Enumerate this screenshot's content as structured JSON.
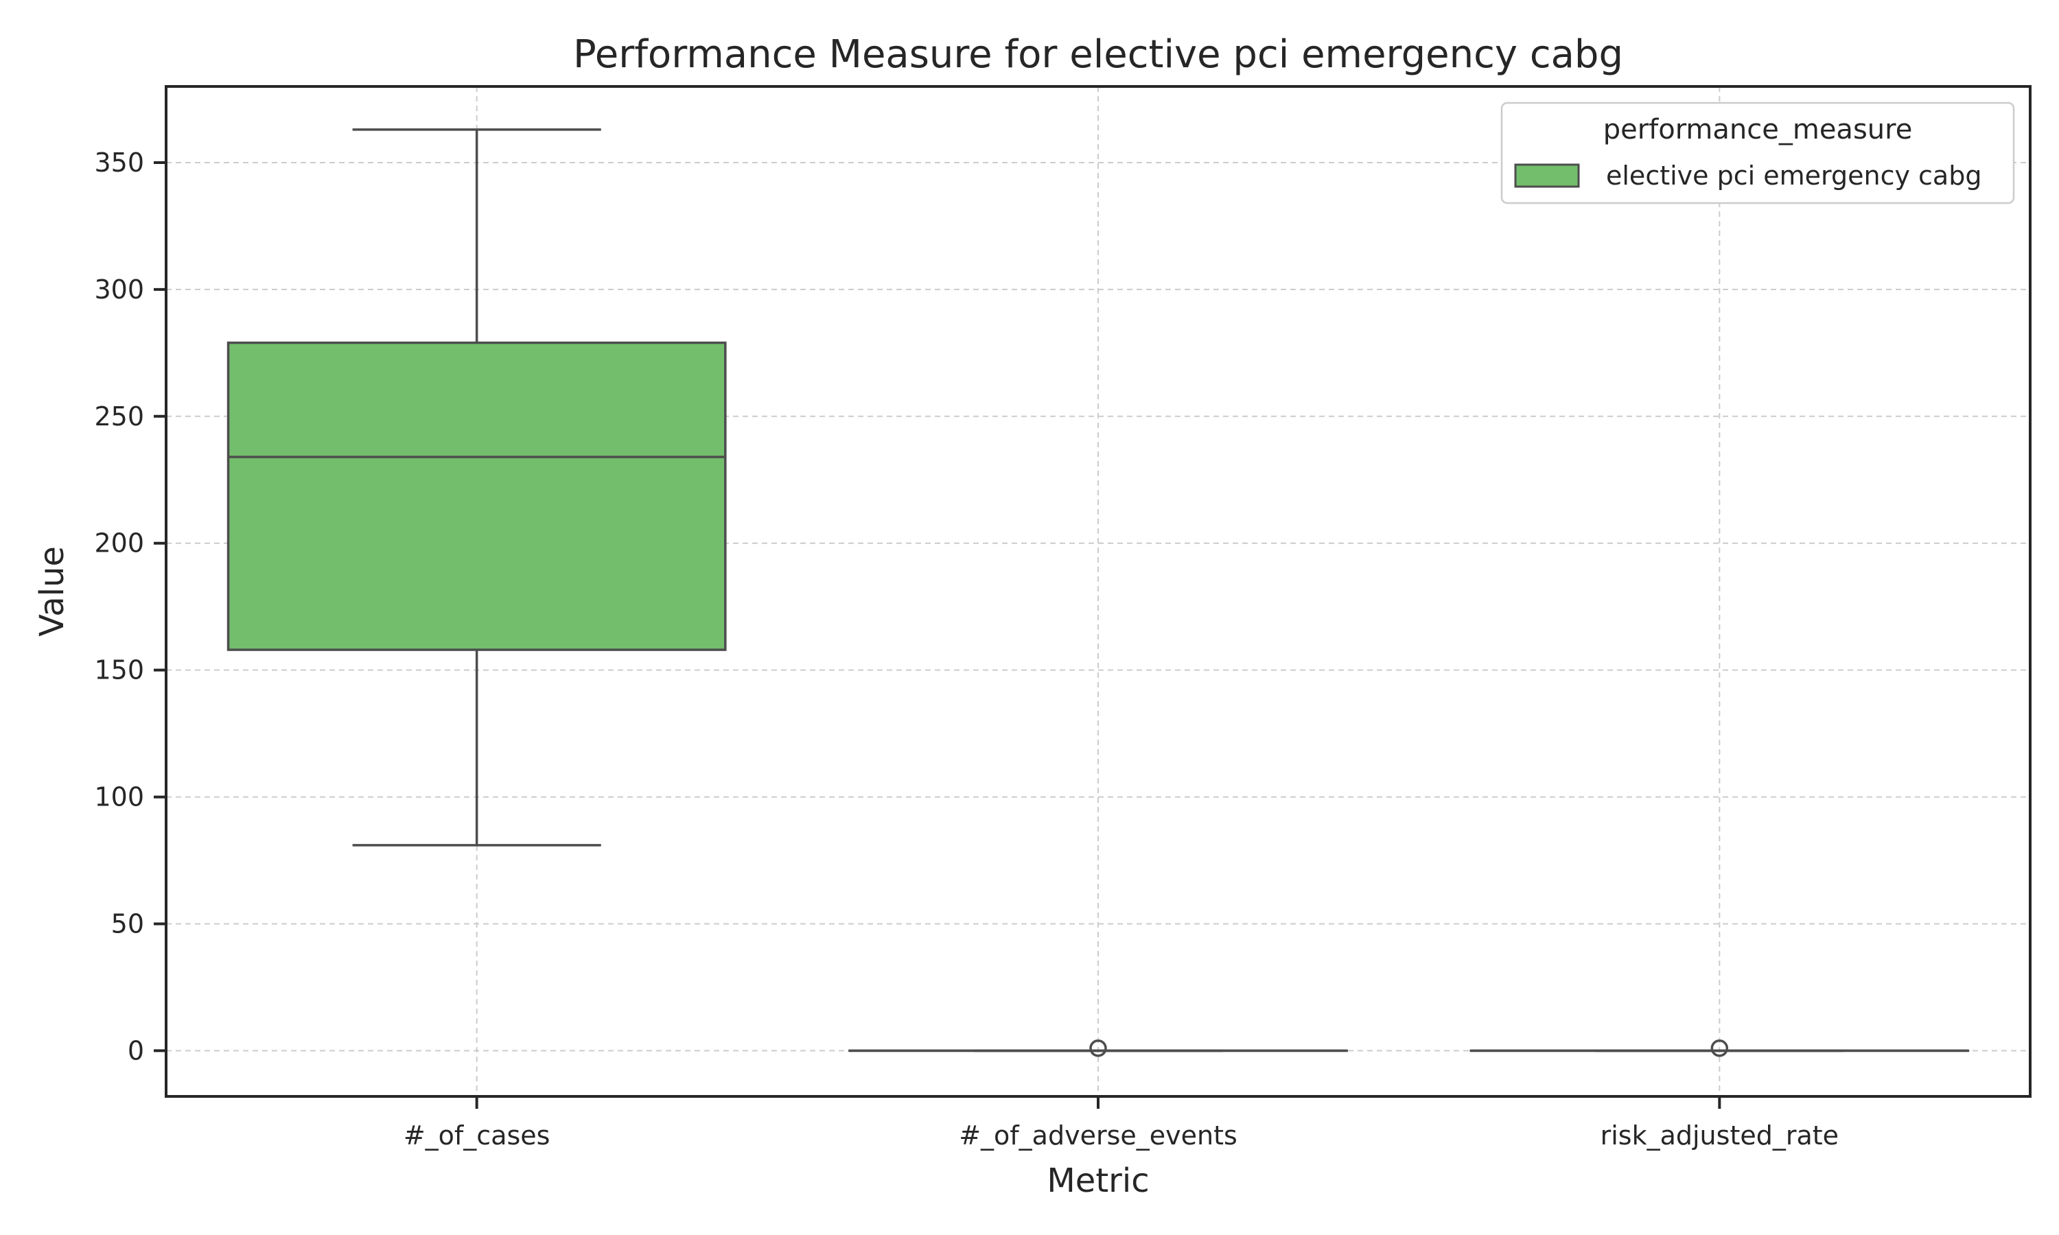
{
  "chart_data": {
    "type": "box",
    "title": "Performance Measure for elective pci emergency cabg",
    "xlabel": "Metric",
    "ylabel": "Value",
    "ylim": [
      -18,
      380
    ],
    "yticks": [
      0,
      50,
      100,
      150,
      200,
      250,
      300,
      350
    ],
    "ytick_labels": [
      "0",
      "50",
      "100",
      "150",
      "200",
      "250",
      "300",
      "350"
    ],
    "categories": [
      "#_of_cases",
      "#_of_adverse_events",
      "risk_adjusted_rate"
    ],
    "grid": true,
    "legend": {
      "title": "performance_measure",
      "position": "top-right",
      "entries": [
        {
          "label": "elective pci emergency cabg",
          "color": "#72be6c"
        }
      ]
    },
    "series": [
      {
        "name": "elective pci emergency cabg",
        "color": "#72be6c",
        "boxes": [
          {
            "category": "#_of_cases",
            "whisker_low": 81,
            "q1": 158,
            "median": 234,
            "q3": 279,
            "whisker_high": 363,
            "outliers": []
          },
          {
            "category": "#_of_adverse_events",
            "whisker_low": 0,
            "q1": 0,
            "median": 0,
            "q3": 0,
            "whisker_high": 0,
            "outliers": [
              1
            ]
          },
          {
            "category": "risk_adjusted_rate",
            "whisker_low": 0,
            "q1": 0,
            "median": 0,
            "q3": 0,
            "whisker_high": 0,
            "outliers": [
              1
            ]
          }
        ]
      }
    ]
  }
}
